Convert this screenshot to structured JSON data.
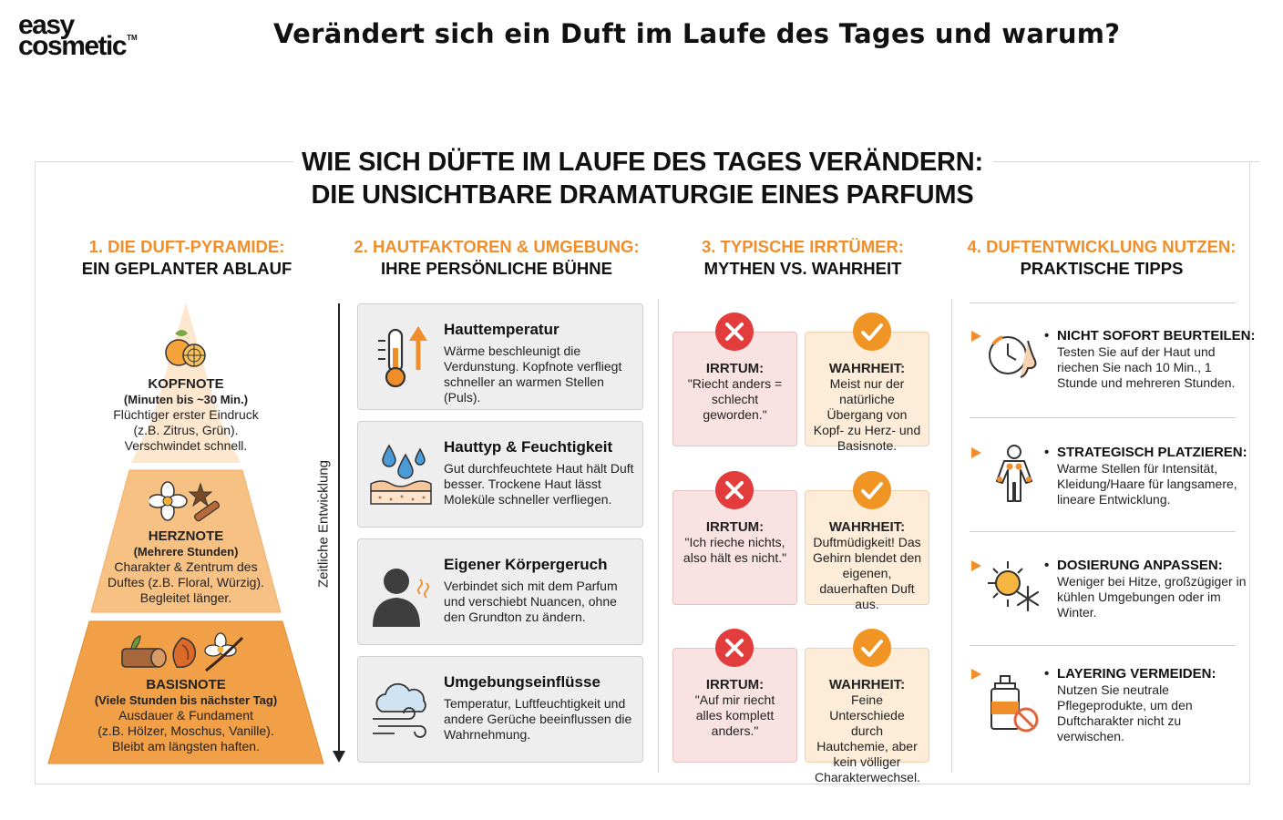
{
  "logo": {
    "line1": "easy",
    "line2": "cosmetic",
    "tm": "TM"
  },
  "page_title": "Verändert sich ein Duft im Laufe des Tages und warum?",
  "infographic": {
    "title_line1": "WIE SICH DÜFTE IM LAUFE DES TAGES VERÄNDERN:",
    "title_line2": "DIE UNSICHTBARE DRAMATURGIE EINES PARFUMS"
  },
  "sections": [
    {
      "number": "1. DIE DUFT-PYRAMIDE:",
      "subtitle": "EIN GEPLANTER ABLAUF"
    },
    {
      "number": "2. HAUTFAKTOREN & UMGEBUNG:",
      "subtitle": "IHRE PERSÖNLICHE BÜHNE"
    },
    {
      "number": "3. TYPISCHE IRRTÜMER:",
      "subtitle": "MYTHEN VS. WAHRHEIT"
    },
    {
      "number": "4. DUFTENTWICKLUNG NUTZEN:",
      "subtitle": "PRAKTISCHE TIPPS"
    }
  ],
  "pyramid": {
    "top": {
      "name": "KOPFNOTE",
      "time": "(Minuten bis ~30 Min.)",
      "line1": "Flüchtiger erster Eindruck",
      "line2": "(z.B. Zitrus, Grün).",
      "line3": "Verschwindet schnell."
    },
    "middle": {
      "name": "HERZNOTE",
      "time": "(Mehrere Stunden)",
      "line1": "Charakter & Zentrum des",
      "line2": "Duftes (z.B. Floral, Würzig).",
      "line3": "Begleitet länger."
    },
    "base": {
      "name": "BASISNOTE",
      "time": "(Viele Stunden bis nächster Tag)",
      "line1": "Ausdauer & Fundament",
      "line2": "(z.B. Hölzer, Moschus, Vanille).",
      "line3": "Bleibt am längsten haften."
    },
    "colors": {
      "top": "#fde8cf",
      "middle": "#f8c184",
      "base": "#f1a048"
    }
  },
  "axis_label": "Zeitliche Entwicklung",
  "factors": [
    {
      "title": "Hauttemperatur",
      "desc": "Wärme beschleunigt die Verdunstung. Kopfnote verfliegt schneller an warmen Stellen (Puls).",
      "icon": "thermometer-icon"
    },
    {
      "title": "Hauttyp & Feuchtigkeit",
      "desc": "Gut durchfeuchtete Haut hält Duft besser. Trockene Haut lässt Moleküle schneller verfliegen.",
      "icon": "skin-droplets-icon"
    },
    {
      "title": "Eigener Körpergeruch",
      "desc": "Verbindet sich mit dem Parfum und verschiebt Nuancen, ohne den Grundton zu ändern.",
      "icon": "person-silhouette-icon"
    },
    {
      "title": "Umgebungseinflüsse",
      "desc": "Temperatur, Luftfeuchtigkeit und andere Gerüche beeinflussen die Wahrnehmung.",
      "icon": "cloud-wind-icon"
    }
  ],
  "myths": [
    {
      "myth_label": "IRRTUM:",
      "myth_text": "\"Riecht anders = schlecht geworden.\"",
      "truth_label": "WAHRHEIT:",
      "truth_text": "Meist nur der natürliche Übergang von Kopf- zu Herz- und Basisnote."
    },
    {
      "myth_label": "IRRTUM:",
      "myth_text": "\"Ich rieche nichts, also hält es nicht.\"",
      "truth_label": "WAHRHEIT:",
      "truth_text": "Duftmüdigkeit! Das Gehirn blendet den eigenen, dauerhaften Duft aus."
    },
    {
      "myth_label": "IRRTUM:",
      "myth_text": "\"Auf mir riecht alles komplett anders.\"",
      "truth_label": "WAHRHEIT:",
      "truth_text": "Feine Unterschiede durch Hautchemie, aber kein völliger Charakterwechsel."
    }
  ],
  "tips": [
    {
      "title": "NICHT SOFORT BEURTEILEN:",
      "desc": "Testen Sie auf der Haut und riechen Sie nach 10 Min., 1 Stunde und mehreren Stunden.",
      "icon": "clock-nose-icon"
    },
    {
      "title": "STRATEGISCH PLATZIEREN:",
      "desc": "Warme Stellen für Intensität, Kleidung/Haare für langsamere, lineare Entwicklung.",
      "icon": "body-points-icon"
    },
    {
      "title": "DOSIERUNG ANPASSEN:",
      "desc": "Weniger bei Hitze, großzügiger in kühlen Umgebungen oder im Winter.",
      "icon": "sun-snowflake-icon"
    },
    {
      "title": "LAYERING VERMEIDEN:",
      "desc": "Nutzen Sie neutrale Pflegeprodukte, um den Duftcharakter nicht zu verwischen.",
      "icon": "no-bottle-icon"
    }
  ],
  "colors": {
    "accent": "#ef8e2a",
    "error": "#e23c3c",
    "myth_bg": "#f9e2e2",
    "truth_bg": "#fcecd8",
    "card_bg": "#eeeeee"
  },
  "bullet": "•"
}
